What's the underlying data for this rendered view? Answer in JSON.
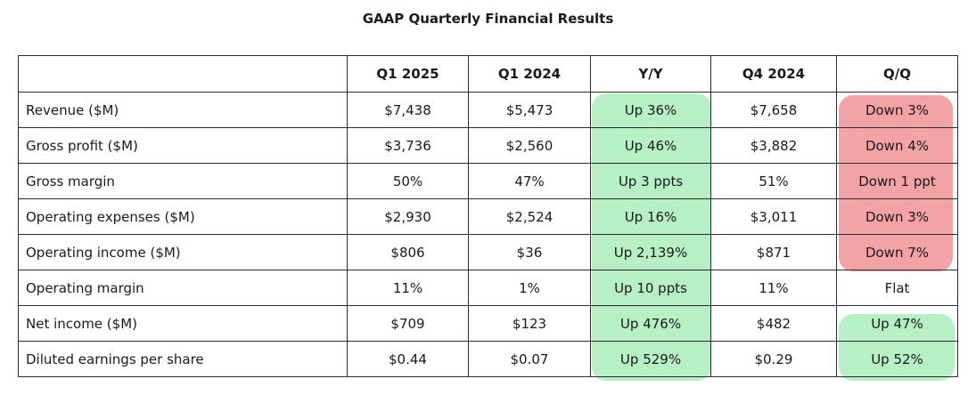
{
  "title": "GAAP Quarterly Financial Results",
  "columns": [
    "",
    "Q1 2025",
    "Q1 2024",
    "Y/Y",
    "Q4 2024",
    "Q/Q"
  ],
  "rows": [
    {
      "label": "Revenue ($M)",
      "q1_2025": "$7,438",
      "q1_2024": "$5,473",
      "yy": "Up 36%",
      "q4_2024": "$7,658",
      "qq": "Down 3%"
    },
    {
      "label": "Gross profit ($M)",
      "q1_2025": "$3,736",
      "q1_2024": "$2,560",
      "yy": "Up 46%",
      "q4_2024": "$3,882",
      "qq": "Down 4%"
    },
    {
      "label": "Gross margin",
      "q1_2025": "50%",
      "q1_2024": "47%",
      "yy": "Up 3 ppts",
      "q4_2024": "51%",
      "qq": "Down 1 ppt"
    },
    {
      "label": "Operating expenses ($M)",
      "q1_2025": "$2,930",
      "q1_2024": "$2,524",
      "yy": "Up 16%",
      "q4_2024": "$3,011",
      "qq": "Down 3%"
    },
    {
      "label": "Operating income ($M)",
      "q1_2025": "$806",
      "q1_2024": "$36",
      "yy": "Up 2,139%",
      "q4_2024": "$871",
      "qq": "Down 7%"
    },
    {
      "label": "Operating margin",
      "q1_2025": "11%",
      "q1_2024": "1%",
      "yy": "Up 10 ppts",
      "q4_2024": "11%",
      "qq": "Flat"
    },
    {
      "label": "Net income ($M)",
      "q1_2025": "$709",
      "q1_2024": "$123",
      "yy": "Up 476%",
      "q4_2024": "$482",
      "qq": "Up 47%"
    },
    {
      "label": "Diluted earnings per share",
      "q1_2025": "$0.44",
      "q1_2024": "$0.07",
      "yy": "Up 529%",
      "q4_2024": "$0.29",
      "qq": "Up 52%"
    }
  ],
  "colors": {
    "increase": "#b8f0c6",
    "decrease": "#f3a2a6",
    "border": "#2a2a2a"
  }
}
